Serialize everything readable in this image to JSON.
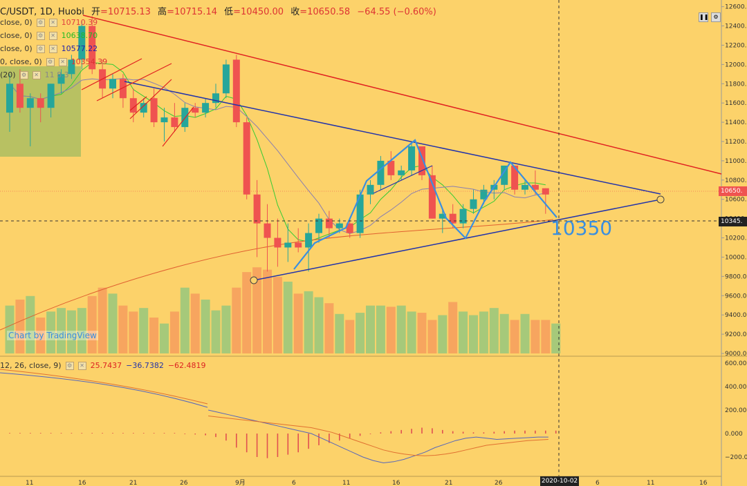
{
  "header": {
    "symbol": "C/USDT, 1D, Huobi",
    "open_label": "开",
    "open": "=10715.13",
    "high_label": "高",
    "high": "=10715.14",
    "low_label": "低",
    "low": "=10450.00",
    "close_label": "收",
    "close": "=10650.58",
    "change": "−64.55 (−0.60%)"
  },
  "indicators": [
    {
      "label": "close, 0)",
      "value": "10710.39",
      "color": "#e04040"
    },
    {
      "label": "close, 0)",
      "value": "10638.70",
      "color": "#33cc33"
    },
    {
      "label": "close, 0)",
      "value": "10577.22",
      "color": "#2222aa"
    },
    {
      "label": "0, close, 0)",
      "value": "10354.39",
      "color": "#dd3333"
    },
    {
      "label": "(20)",
      "value": "11 8.3",
      "color": "#888888"
    }
  ],
  "macd": {
    "label": "12, 26, close, 9)",
    "v1": "25.7437",
    "v1_color": "#dd2222",
    "v2": "−36.7382",
    "v2_color": "#2233aa",
    "v3": "−62.4819",
    "v3_color": "#dd2222"
  },
  "watermark": "Chart by TradingView",
  "annotation": "10350",
  "price_tags": {
    "current": "10650.",
    "crosshair": "10345."
  },
  "date_tag": "2020-10-02",
  "price_axis": [
    "12600.00",
    "12400.00",
    "12200.00",
    "12000.00",
    "11800.00",
    "11600.00",
    "11400.00",
    "11200.00",
    "11000.00",
    "10800.00",
    "10600.00",
    "10400.00",
    "10200.00",
    "10000.00",
    "9800.00",
    "9600.00",
    "9400.00",
    "9200.00",
    "9000.00"
  ],
  "macd_axis": [
    "600.000",
    "400.000",
    "200.000",
    "0.000",
    "−200.000"
  ],
  "time_axis": [
    "11",
    "16",
    "21",
    "26",
    "9月",
    "6",
    "11",
    "16",
    "21",
    "26",
    "6",
    "11",
    "16"
  ],
  "colors": {
    "up": "#26a69a",
    "down": "#ef5350",
    "background": "#fcd26a",
    "blue_line": "#2233aa",
    "red_line": "#e02020",
    "annotation": "#3a8fe0"
  },
  "chart_data": {
    "type": "candlestick",
    "y_range": [
      9000,
      12600
    ],
    "candles": [
      {
        "o": 11500,
        "h": 11900,
        "l": 11300,
        "c": 11800
      },
      {
        "o": 11800,
        "h": 11950,
        "l": 11500,
        "c": 11550
      },
      {
        "o": 11550,
        "h": 11700,
        "l": 11150,
        "c": 11650
      },
      {
        "o": 11650,
        "h": 11700,
        "l": 11400,
        "c": 11550
      },
      {
        "o": 11550,
        "h": 11800,
        "l": 11450,
        "c": 11800
      },
      {
        "o": 11800,
        "h": 11950,
        "l": 11700,
        "c": 11900
      },
      {
        "o": 11900,
        "h": 12100,
        "l": 11850,
        "c": 12050
      },
      {
        "o": 12050,
        "h": 12450,
        "l": 11950,
        "c": 12400
      },
      {
        "o": 12400,
        "h": 12500,
        "l": 11900,
        "c": 11950
      },
      {
        "o": 11950,
        "h": 12050,
        "l": 11650,
        "c": 11750
      },
      {
        "o": 11750,
        "h": 11900,
        "l": 11650,
        "c": 11850
      },
      {
        "o": 11850,
        "h": 11900,
        "l": 11550,
        "c": 11650
      },
      {
        "o": 11650,
        "h": 11750,
        "l": 11400,
        "c": 11500
      },
      {
        "o": 11500,
        "h": 11650,
        "l": 11450,
        "c": 11600
      },
      {
        "o": 11650,
        "h": 11750,
        "l": 11350,
        "c": 11400
      },
      {
        "o": 11400,
        "h": 11550,
        "l": 11200,
        "c": 11450
      },
      {
        "o": 11450,
        "h": 11600,
        "l": 11300,
        "c": 11350
      },
      {
        "o": 11350,
        "h": 11600,
        "l": 11300,
        "c": 11550
      },
      {
        "o": 11550,
        "h": 11600,
        "l": 11450,
        "c": 11500
      },
      {
        "o": 11500,
        "h": 11650,
        "l": 11450,
        "c": 11600
      },
      {
        "o": 11600,
        "h": 11800,
        "l": 11550,
        "c": 11700
      },
      {
        "o": 11700,
        "h": 12050,
        "l": 11650,
        "c": 12000
      },
      {
        "o": 12050,
        "h": 12100,
        "l": 11350,
        "c": 11400
      },
      {
        "o": 11400,
        "h": 11450,
        "l": 10600,
        "c": 10650
      },
      {
        "o": 10650,
        "h": 10800,
        "l": 10000,
        "c": 10350
      },
      {
        "o": 10350,
        "h": 10550,
        "l": 9850,
        "c": 10200
      },
      {
        "o": 10200,
        "h": 10400,
        "l": 9900,
        "c": 10100
      },
      {
        "o": 10100,
        "h": 10350,
        "l": 9950,
        "c": 10150
      },
      {
        "o": 10150,
        "h": 10300,
        "l": 10050,
        "c": 10100
      },
      {
        "o": 10100,
        "h": 10350,
        "l": 9850,
        "c": 10250
      },
      {
        "o": 10250,
        "h": 10450,
        "l": 10150,
        "c": 10400
      },
      {
        "o": 10400,
        "h": 10480,
        "l": 10200,
        "c": 10300
      },
      {
        "o": 10300,
        "h": 10400,
        "l": 10250,
        "c": 10350
      },
      {
        "o": 10350,
        "h": 10400,
        "l": 10200,
        "c": 10250
      },
      {
        "o": 10250,
        "h": 10700,
        "l": 10200,
        "c": 10650
      },
      {
        "o": 10650,
        "h": 10800,
        "l": 10550,
        "c": 10750
      },
      {
        "o": 10750,
        "h": 11050,
        "l": 10700,
        "c": 11000
      },
      {
        "o": 11000,
        "h": 11100,
        "l": 10800,
        "c": 10850
      },
      {
        "o": 10850,
        "h": 10950,
        "l": 10800,
        "c": 10900
      },
      {
        "o": 10900,
        "h": 11200,
        "l": 10850,
        "c": 11150
      },
      {
        "o": 11150,
        "h": 11150,
        "l": 10800,
        "c": 10850
      },
      {
        "o": 10850,
        "h": 10950,
        "l": 10400,
        "c": 10400
      },
      {
        "o": 10400,
        "h": 10500,
        "l": 10250,
        "c": 10450
      },
      {
        "o": 10450,
        "h": 10550,
        "l": 10300,
        "c": 10350
      },
      {
        "o": 10350,
        "h": 10550,
        "l": 10300,
        "c": 10500
      },
      {
        "o": 10500,
        "h": 10700,
        "l": 10450,
        "c": 10600
      },
      {
        "o": 10600,
        "h": 10750,
        "l": 10550,
        "c": 10700
      },
      {
        "o": 10700,
        "h": 10800,
        "l": 10600,
        "c": 10750
      },
      {
        "o": 10750,
        "h": 10950,
        "l": 10700,
        "c": 10950
      },
      {
        "o": 10950,
        "h": 10950,
        "l": 10650,
        "c": 10700
      },
      {
        "o": 10700,
        "h": 10800,
        "l": 10650,
        "c": 10750
      },
      {
        "o": 10750,
        "h": 10900,
        "l": 10650,
        "c": 10700
      },
      {
        "o": 10715,
        "h": 10715,
        "l": 10450,
        "c": 10650
      }
    ],
    "volume": [
      40,
      45,
      48,
      30,
      35,
      38,
      36,
      38,
      48,
      55,
      50,
      40,
      35,
      38,
      30,
      25,
      35,
      55,
      50,
      45,
      36,
      40,
      55,
      68,
      72,
      70,
      64,
      60,
      50,
      52,
      47,
      42,
      33,
      28,
      34,
      40,
      40,
      39,
      40,
      35,
      34,
      28,
      32,
      43,
      35,
      32,
      35,
      38,
      33,
      28,
      33,
      28,
      28,
      25
    ],
    "macd_hist": [
      5,
      5,
      5,
      5,
      5,
      5,
      5,
      5,
      5,
      5,
      5,
      5,
      5,
      5,
      5,
      5,
      5,
      -5,
      -8,
      -15,
      -30,
      -60,
      -120,
      -160,
      -200,
      -210,
      -200,
      -180,
      -160,
      -130,
      -100,
      -80,
      -60,
      -40,
      -20,
      -5,
      10,
      20,
      30,
      40,
      50,
      45,
      30,
      20,
      15,
      10,
      10,
      15,
      20,
      25,
      25,
      25,
      25,
      25
    ],
    "macd_line": [
      200,
      180,
      160,
      140,
      120,
      100,
      80,
      60,
      40,
      20,
      0,
      -40,
      -80,
      -120,
      -160,
      -200,
      -230,
      -250,
      -240,
      -220,
      -190,
      -160,
      -120,
      -90,
      -60,
      -40,
      -30,
      -40,
      -50,
      -45,
      -40,
      -35,
      -30,
      -30
    ],
    "signal_line": [
      150,
      140,
      130,
      120,
      110,
      100,
      90,
      80,
      70,
      60,
      50,
      30,
      10,
      -20,
      -50,
      -80,
      -110,
      -140,
      -160,
      -175,
      -185,
      -190,
      -185,
      -175,
      -160,
      -140,
      -120,
      -100,
      -90,
      -80,
      -70,
      -60,
      -55,
      -50
    ]
  }
}
